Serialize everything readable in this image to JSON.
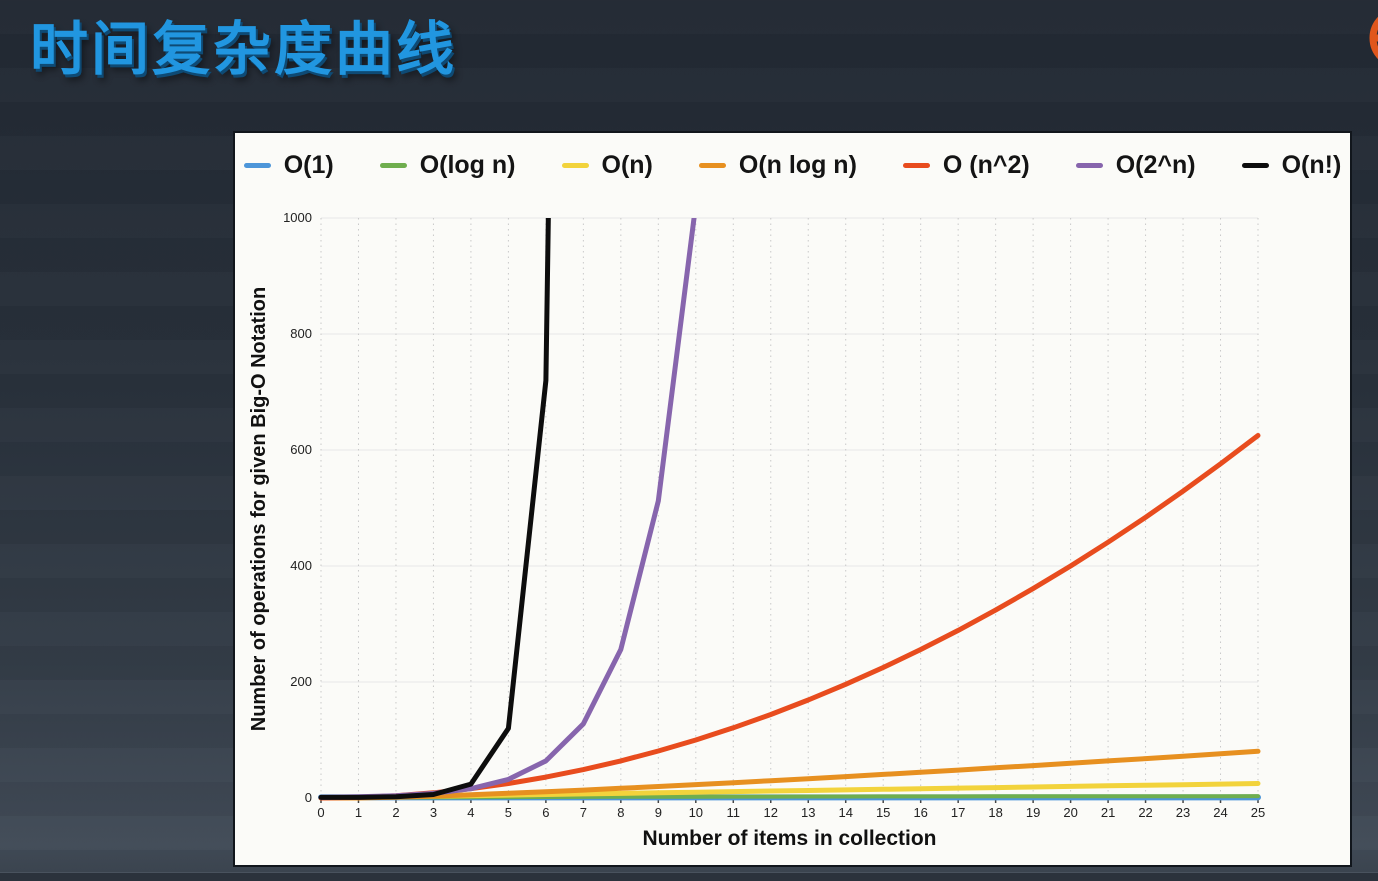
{
  "slide": {
    "title": "时间复杂度曲线",
    "accent_color": "#2196e0",
    "logo_color": "#e0561c"
  },
  "chart_data": {
    "type": "line",
    "title": "",
    "xlabel": "Number of items in collection",
    "ylabel": "Number of operations for given Big-O Notation",
    "xlim": [
      0,
      25
    ],
    "ylim": [
      0,
      1000
    ],
    "x_ticks": [
      0,
      1,
      2,
      3,
      4,
      5,
      6,
      7,
      8,
      9,
      10,
      11,
      12,
      13,
      14,
      15,
      16,
      17,
      18,
      19,
      20,
      21,
      22,
      23,
      24,
      25
    ],
    "y_ticks": [
      0,
      200,
      400,
      600,
      800,
      1000
    ],
    "grid": {
      "vertical": "dotted at every x tick",
      "horizontal": "solid at every y tick"
    },
    "legend_position": "top",
    "panel_background": "#fbfbf8",
    "series": [
      {
        "name": "O(1)",
        "color": "#4d96d9",
        "width": 6,
        "x": [
          0,
          25
        ],
        "y": [
          1,
          1
        ]
      },
      {
        "name": "O(log n)",
        "color": "#6fae4e",
        "width": 4,
        "x": [
          0,
          1,
          2,
          3,
          4,
          5,
          6,
          7,
          8,
          9,
          10,
          11,
          12,
          13,
          14,
          15,
          16,
          17,
          18,
          19,
          20,
          21,
          22,
          23,
          24,
          25
        ],
        "y": [
          0,
          0,
          0.69,
          1.1,
          1.39,
          1.61,
          1.79,
          1.95,
          2.08,
          2.2,
          2.3,
          2.4,
          2.48,
          2.56,
          2.64,
          2.71,
          2.77,
          2.83,
          2.89,
          2.94,
          3.0,
          3.04,
          3.09,
          3.14,
          3.18,
          3.22
        ]
      },
      {
        "name": "O(n)",
        "color": "#f2d33c",
        "width": 5,
        "x": [
          0,
          1,
          2,
          3,
          4,
          5,
          6,
          7,
          8,
          9,
          10,
          11,
          12,
          13,
          14,
          15,
          16,
          17,
          18,
          19,
          20,
          21,
          22,
          23,
          24,
          25
        ],
        "y": [
          0,
          1,
          2,
          3,
          4,
          5,
          6,
          7,
          8,
          9,
          10,
          11,
          12,
          13,
          14,
          15,
          16,
          17,
          18,
          19,
          20,
          21,
          22,
          23,
          24,
          25
        ]
      },
      {
        "name": "O(n log n)",
        "color": "#e79020",
        "width": 5,
        "x": [
          0,
          1,
          2,
          3,
          4,
          5,
          6,
          7,
          8,
          9,
          10,
          11,
          12,
          13,
          14,
          15,
          16,
          17,
          18,
          19,
          20,
          21,
          22,
          23,
          24,
          25
        ],
        "y": [
          0,
          0,
          1.39,
          3.3,
          5.55,
          8.05,
          10.75,
          13.62,
          16.64,
          19.78,
          23.03,
          26.38,
          29.82,
          33.34,
          36.95,
          40.62,
          44.36,
          48.16,
          52.03,
          55.94,
          59.91,
          63.93,
          68.0,
          72.11,
          76.27,
          80.47
        ]
      },
      {
        "name": "O (n^2)",
        "color": "#e84c1e",
        "width": 5,
        "x": [
          0,
          1,
          2,
          3,
          4,
          5,
          6,
          7,
          8,
          9,
          10,
          11,
          12,
          13,
          14,
          15,
          16,
          17,
          18,
          19,
          20,
          21,
          22,
          23,
          24,
          25
        ],
        "y": [
          0,
          1,
          4,
          9,
          16,
          25,
          36,
          49,
          64,
          81,
          100,
          121,
          144,
          169,
          196,
          225,
          256,
          289,
          324,
          361,
          400,
          441,
          484,
          529,
          576,
          625
        ]
      },
      {
        "name": "O(2^n)",
        "color": "#8765ad",
        "width": 5,
        "x": [
          0,
          1,
          2,
          3,
          4,
          5,
          6,
          7,
          8,
          9,
          10
        ],
        "y": [
          1,
          2,
          4,
          8,
          16,
          32,
          64,
          128,
          256,
          512,
          1024
        ]
      },
      {
        "name": "O(n!)",
        "color": "#0d0d0d",
        "width": 5,
        "x": [
          0,
          1,
          2,
          3,
          4,
          5,
          6,
          7
        ],
        "y": [
          1,
          1,
          2,
          6,
          24,
          120,
          720,
          5040
        ]
      }
    ]
  }
}
